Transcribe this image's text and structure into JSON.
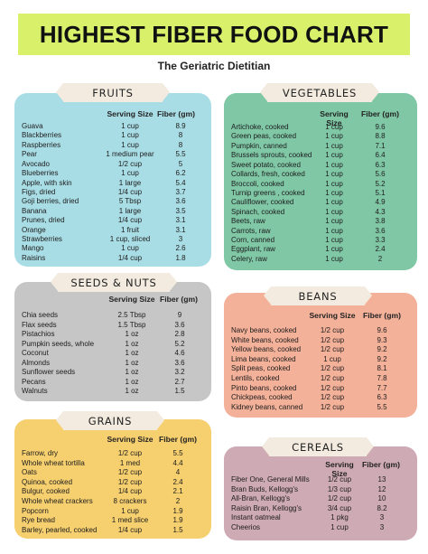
{
  "title": "HIGHEST FIBER FOOD CHART",
  "subtitle": "The Geriatric Dietitian",
  "colors": {
    "title_bg": "#d8f06a",
    "fruits": "#a9dde5",
    "vegetables": "#7fc7a5",
    "seeds": "#c6c6c6",
    "beans": "#f4b199",
    "grains": "#f6cf6f",
    "cereals": "#ceaab5",
    "label_bg": "#f3ebdf"
  },
  "sections": {
    "fruits": {
      "name": "FRUITS",
      "serving_header": "Serving Size",
      "fiber_header": "Fiber (gm)",
      "rows": [
        [
          "Guava",
          "1 cup",
          "8.9"
        ],
        [
          "Blackberries",
          "1 cup",
          "8"
        ],
        [
          "Raspberries",
          "1 cup",
          "8"
        ],
        [
          "Pear",
          "1 medium pear",
          "5.5"
        ],
        [
          "Avocado",
          "1/2 cup",
          "5"
        ],
        [
          "Blueberries",
          "1 cup",
          "6.2"
        ],
        [
          "Apple, with skin",
          "1 large",
          "5.4"
        ],
        [
          "Figs, dried",
          "1/4 cup",
          "3.7"
        ],
        [
          "Goji berries, dried",
          "5 Tbsp",
          "3.6"
        ],
        [
          "Banana",
          "1 large",
          "3.5"
        ],
        [
          "Prunes, dried",
          "1/4 cup",
          "3.1"
        ],
        [
          "Orange",
          "1 fruit",
          "3.1"
        ],
        [
          "Strawberries",
          "1 cup, sliced",
          "3"
        ],
        [
          "Mango",
          "1 cup",
          "2.6"
        ],
        [
          "Raisins",
          "1/4 cup",
          "1.8"
        ]
      ]
    },
    "vegetables": {
      "name": "VEGETABLES",
      "serving_header": "Serving Size",
      "fiber_header": "Fiber (gm)",
      "rows": [
        [
          "Artichoke, cooked",
          "1 cup",
          "9.6"
        ],
        [
          "Green peas, cooked",
          "1 cup",
          "8.8"
        ],
        [
          "Pumpkin, canned",
          "1 cup",
          "7.1"
        ],
        [
          "Brussels sprouts, cooked",
          "1 cup",
          "6.4"
        ],
        [
          "Sweet potato, cooked",
          "1 cup",
          "6.3"
        ],
        [
          "Collards, fresh, cooked",
          "1 cup",
          "5.6"
        ],
        [
          "Broccoli, cooked",
          "1 cup",
          "5.2"
        ],
        [
          "Turnip greens , cooked",
          "1 cup",
          "5.1"
        ],
        [
          "Cauliflower, cooked",
          "1 cup",
          "4.9"
        ],
        [
          "Spinach, cooked",
          "1 cup",
          "4.3"
        ],
        [
          "Beets, raw",
          "1 cup",
          "3.8"
        ],
        [
          "Carrots, raw",
          "1 cup",
          "3.6"
        ],
        [
          "Corn, canned",
          "1 cup",
          "3.3"
        ],
        [
          "Eggplant, raw",
          "1 cup",
          "2.4"
        ],
        [
          "Celery, raw",
          "1 cup",
          "2"
        ]
      ]
    },
    "seeds": {
      "name": "SEEDS & NUTS",
      "serving_header": "Serving Size",
      "fiber_header": "Fiber (gm)",
      "rows": [
        [
          "Chia seeds",
          "2.5 Tbsp",
          "9"
        ],
        [
          "Flax seeds",
          "1.5 Tbsp",
          "3.6"
        ],
        [
          "Pistachios",
          "1 oz",
          "2.8"
        ],
        [
          "Pumpkin seeds, whole",
          "1 oz",
          "5.2"
        ],
        [
          "Coconut",
          "1 oz",
          "4.6"
        ],
        [
          "Almonds",
          "1 oz",
          "3.6"
        ],
        [
          "Sunflower seeds",
          "1 oz",
          "3.2"
        ],
        [
          "Pecans",
          "1 oz",
          "2.7"
        ],
        [
          "Walnuts",
          "1 oz",
          "1.5"
        ]
      ]
    },
    "beans": {
      "name": "BEANS",
      "serving_header": "Serving Size",
      "fiber_header": "Fiber (gm)",
      "rows": [
        [
          "Navy beans, cooked",
          "1/2 cup",
          "9.6"
        ],
        [
          "White beans, cooked",
          "1/2 cup",
          "9.3"
        ],
        [
          "Yellow beans, cooked",
          "1/2 cup",
          "9.2"
        ],
        [
          "Lima beans, cooked",
          "1 cup",
          "9.2"
        ],
        [
          "Split peas, cooked",
          "1/2 cup",
          "8.1"
        ],
        [
          "Lentils, cooked",
          "1/2 cup",
          "7.8"
        ],
        [
          "Pinto beans, cooked",
          "1/2 cup",
          "7.7"
        ],
        [
          "Chickpeas, cooked",
          "1/2 cup",
          "6.3"
        ],
        [
          "Kidney beans, canned",
          "1/2 cup",
          "5.5"
        ]
      ]
    },
    "grains": {
      "name": "GRAINS",
      "serving_header": "Serving Size",
      "fiber_header": "Fiber (gm)",
      "rows": [
        [
          "Farrow, dry",
          "1/2 cup",
          "5.5"
        ],
        [
          "Whole wheat tortilla",
          "1 med",
          "4.4"
        ],
        [
          "Oats",
          "1/2 cup",
          "4"
        ],
        [
          "Quinoa, cooked",
          "1/2 cup",
          "2.4"
        ],
        [
          "Bulgur, cooked",
          "1/4 cup",
          "2.1"
        ],
        [
          "Whole wheat crackers",
          "8 crackers",
          "2"
        ],
        [
          "Popcorn",
          "1 cup",
          "1.9"
        ],
        [
          "Rye bread",
          "1 med slice",
          "1.9"
        ],
        [
          "Barley, pearled, cooked",
          "1/4 cup",
          "1.5"
        ]
      ]
    },
    "cereals": {
      "name": "CEREALS",
      "serving_header": "Serving Size",
      "fiber_header": "Fiber (gm)",
      "rows": [
        [
          "Fiber One, General Mills",
          "1/2 cup",
          "13"
        ],
        [
          "Bran Buds, Kellogg's",
          "1/3 cup",
          "12"
        ],
        [
          "All-Bran, Kellogg's",
          "1/2 cup",
          "10"
        ],
        [
          "Raisin Bran, Kellogg's",
          "3/4 cup",
          "8.2"
        ],
        [
          "Instant oatmeal",
          "1 pkg",
          "3"
        ],
        [
          "Cheerios",
          "1 cup",
          "3"
        ]
      ]
    }
  }
}
